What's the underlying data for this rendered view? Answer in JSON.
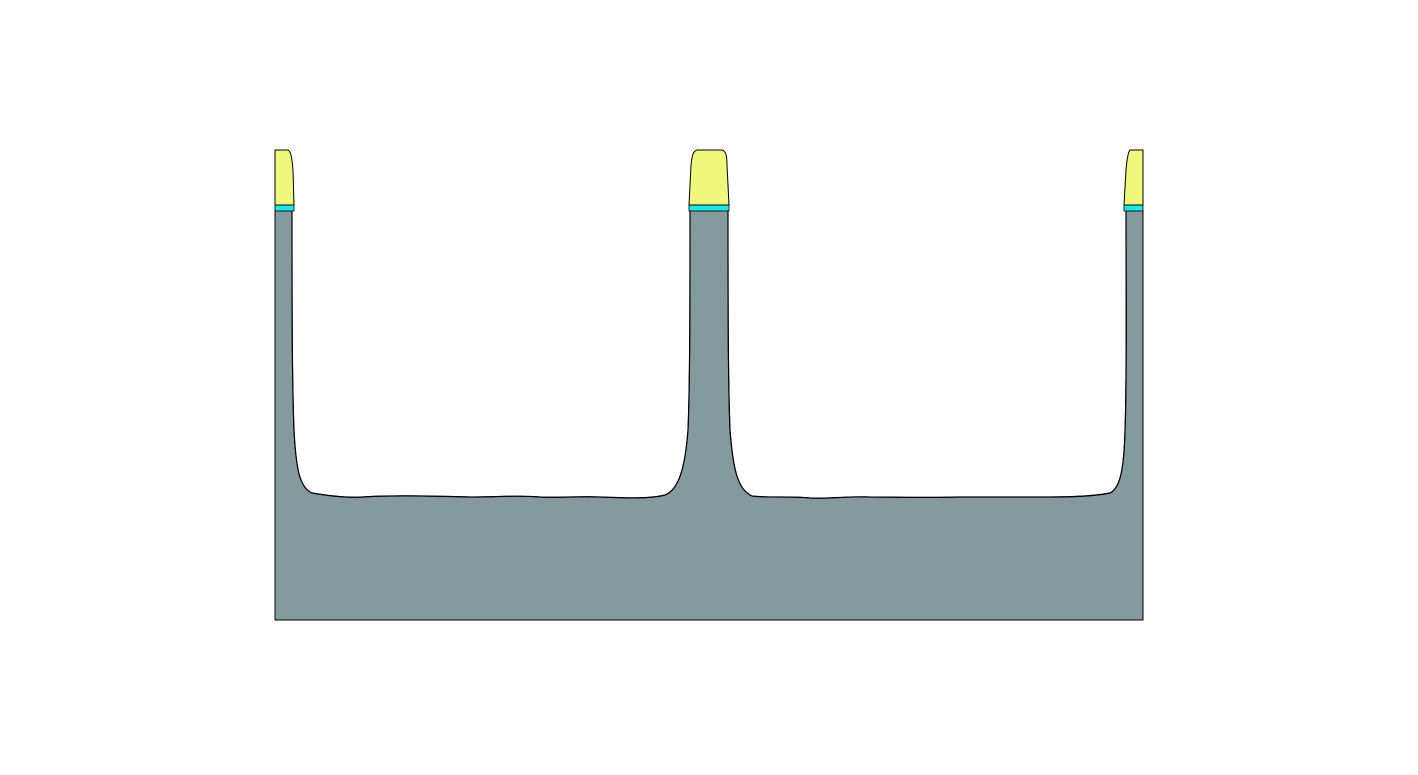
{
  "figure": {
    "description_visible_text": "",
    "colors": {
      "background": "#ffffff",
      "substrate": "#859a9f",
      "mask": "#f0f77d",
      "interface_layer": "#1fe6ea",
      "outline": "#000000"
    },
    "materials": [
      {
        "key": "substrate",
        "color": "#859a9f"
      },
      {
        "key": "mask",
        "color": "#f0f77d"
      },
      {
        "key": "interface_layer",
        "color": "#1fe6ea"
      }
    ],
    "structure": {
      "pillars": 3,
      "trenches": 2
    }
  }
}
